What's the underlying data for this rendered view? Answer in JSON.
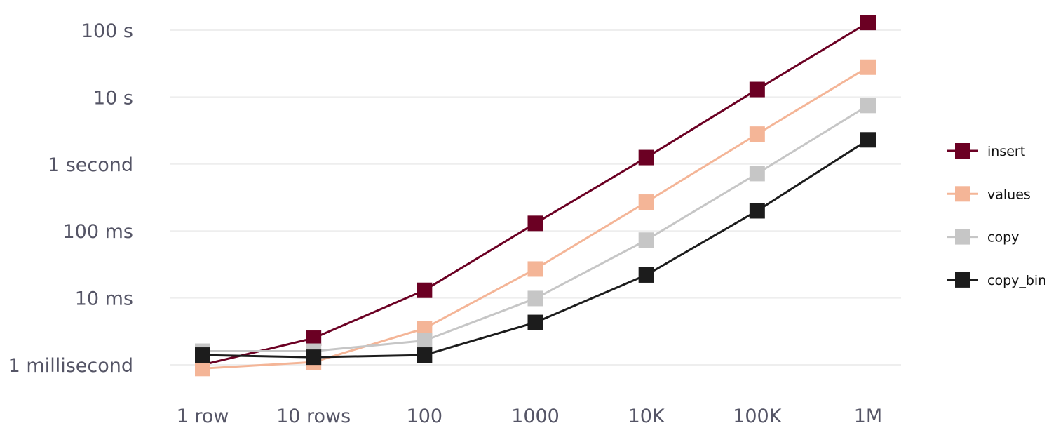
{
  "chart_data": {
    "type": "line",
    "title": "",
    "xlabel": "",
    "ylabel": "",
    "y_scale": "log",
    "grid": "horizontal",
    "legend_position": "right",
    "categories": [
      "1 row",
      "10 rows",
      "100",
      "1000",
      "10K",
      "100K",
      "1M"
    ],
    "y_ticks": [
      {
        "value": 0.001,
        "label": "1 millisecond"
      },
      {
        "value": 0.01,
        "label": "10 ms"
      },
      {
        "value": 0.1,
        "label": "100 ms"
      },
      {
        "value": 1,
        "label": "1 second"
      },
      {
        "value": 10,
        "label": "10 s"
      },
      {
        "value": 100,
        "label": "100 s"
      }
    ],
    "ylim": [
      0.001,
      100
    ],
    "series": [
      {
        "name": "insert",
        "color": "#6b0023",
        "values": [
          0.001,
          0.0025,
          0.013,
          0.13,
          1.25,
          13,
          130
        ]
      },
      {
        "name": "values",
        "color": "#f4b597",
        "values": [
          0.00088,
          0.0011,
          0.0035,
          0.027,
          0.27,
          2.8,
          28
        ]
      },
      {
        "name": "copy",
        "color": "#c6c6c6",
        "values": [
          0.0016,
          0.0016,
          0.0023,
          0.0098,
          0.073,
          0.72,
          7.5
        ]
      },
      {
        "name": "copy_bin",
        "color": "#1c1c1c",
        "values": [
          0.0014,
          0.0013,
          0.0014,
          0.0043,
          0.022,
          0.2,
          2.3
        ]
      }
    ]
  }
}
